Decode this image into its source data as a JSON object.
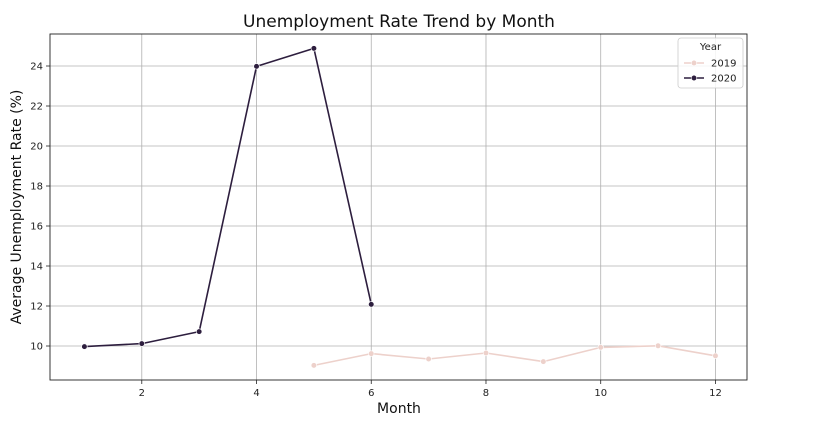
{
  "chart_data": {
    "type": "line",
    "title": "Unemployment Rate Trend by Month",
    "xlabel": "Month",
    "ylabel": "Average Unemployment Rate (%)",
    "xlim": [
      0.4,
      12.55
    ],
    "ylim": [
      8.3,
      25.6
    ],
    "xticks": [
      2,
      4,
      6,
      8,
      10,
      12
    ],
    "yticks": [
      10,
      12,
      14,
      16,
      18,
      20,
      22,
      24
    ],
    "grid": true,
    "legend": {
      "title": "Year",
      "placement": "top-right"
    },
    "series": [
      {
        "name": "2019",
        "color": "#edd1cb",
        "x": [
          5,
          6,
          7,
          8,
          9,
          10,
          11,
          12
        ],
        "y": [
          9.03,
          9.62,
          9.35,
          9.65,
          9.22,
          9.93,
          10.01,
          9.51
        ]
      },
      {
        "name": "2020",
        "color": "#2d1e3e",
        "x": [
          1,
          2,
          3,
          4,
          5,
          6
        ],
        "y": [
          9.97,
          10.12,
          10.72,
          23.98,
          24.88,
          12.08
        ]
      }
    ]
  }
}
